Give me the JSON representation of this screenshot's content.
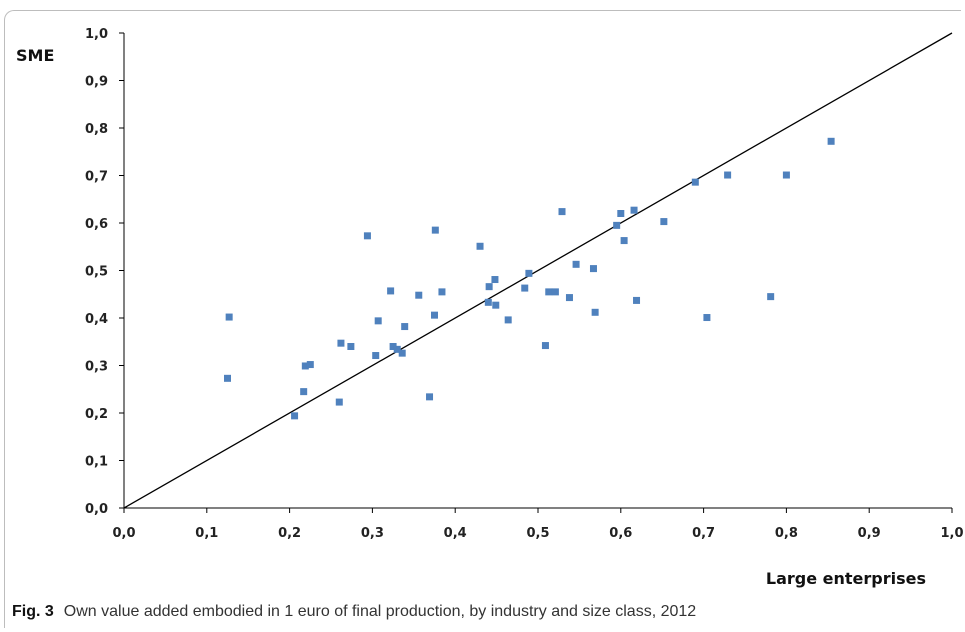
{
  "caption": {
    "label": "Fig. 3",
    "text": "Own value added embodied in 1 euro of final production, by industry and size class, 2012"
  },
  "colors": {
    "marker": "#4f81bd",
    "line": "#000000"
  },
  "chart_data": {
    "type": "scatter",
    "title": "",
    "xlabel": "Large enterprises",
    "ylabel": "SME",
    "xlim": [
      0,
      1
    ],
    "ylim": [
      0,
      1
    ],
    "x_tick_labels": [
      "0,0",
      "0,1",
      "0,2",
      "0,3",
      "0,4",
      "0,5",
      "0,6",
      "0,7",
      "0,8",
      "0,9",
      "1,0"
    ],
    "y_tick_labels": [
      "0,0",
      "0,1",
      "0,2",
      "0,3",
      "0,4",
      "0,5",
      "0,6",
      "0,7",
      "0,8",
      "0,9",
      "1,0"
    ],
    "grid": false,
    "reference_line": {
      "from": [
        0,
        0
      ],
      "to": [
        1,
        1
      ]
    },
    "points": [
      [
        0.125,
        0.273
      ],
      [
        0.127,
        0.402
      ],
      [
        0.206,
        0.194
      ],
      [
        0.217,
        0.245
      ],
      [
        0.219,
        0.299
      ],
      [
        0.225,
        0.302
      ],
      [
        0.26,
        0.223
      ],
      [
        0.262,
        0.347
      ],
      [
        0.274,
        0.34
      ],
      [
        0.294,
        0.573
      ],
      [
        0.304,
        0.321
      ],
      [
        0.307,
        0.394
      ],
      [
        0.322,
        0.457
      ],
      [
        0.325,
        0.34
      ],
      [
        0.33,
        0.334
      ],
      [
        0.336,
        0.326
      ],
      [
        0.339,
        0.382
      ],
      [
        0.356,
        0.448
      ],
      [
        0.369,
        0.234
      ],
      [
        0.375,
        0.406
      ],
      [
        0.376,
        0.585
      ],
      [
        0.384,
        0.455
      ],
      [
        0.43,
        0.551
      ],
      [
        0.44,
        0.433
      ],
      [
        0.441,
        0.466
      ],
      [
        0.448,
        0.481
      ],
      [
        0.449,
        0.427
      ],
      [
        0.464,
        0.396
      ],
      [
        0.484,
        0.463
      ],
      [
        0.489,
        0.494
      ],
      [
        0.509,
        0.342
      ],
      [
        0.513,
        0.455
      ],
      [
        0.521,
        0.455
      ],
      [
        0.529,
        0.624
      ],
      [
        0.538,
        0.443
      ],
      [
        0.546,
        0.513
      ],
      [
        0.567,
        0.504
      ],
      [
        0.569,
        0.412
      ],
      [
        0.595,
        0.595
      ],
      [
        0.6,
        0.62
      ],
      [
        0.604,
        0.563
      ],
      [
        0.616,
        0.627
      ],
      [
        0.619,
        0.437
      ],
      [
        0.652,
        0.603
      ],
      [
        0.69,
        0.686
      ],
      [
        0.704,
        0.401
      ],
      [
        0.729,
        0.701
      ],
      [
        0.781,
        0.445
      ],
      [
        0.8,
        0.701
      ],
      [
        0.854,
        0.772
      ]
    ]
  }
}
